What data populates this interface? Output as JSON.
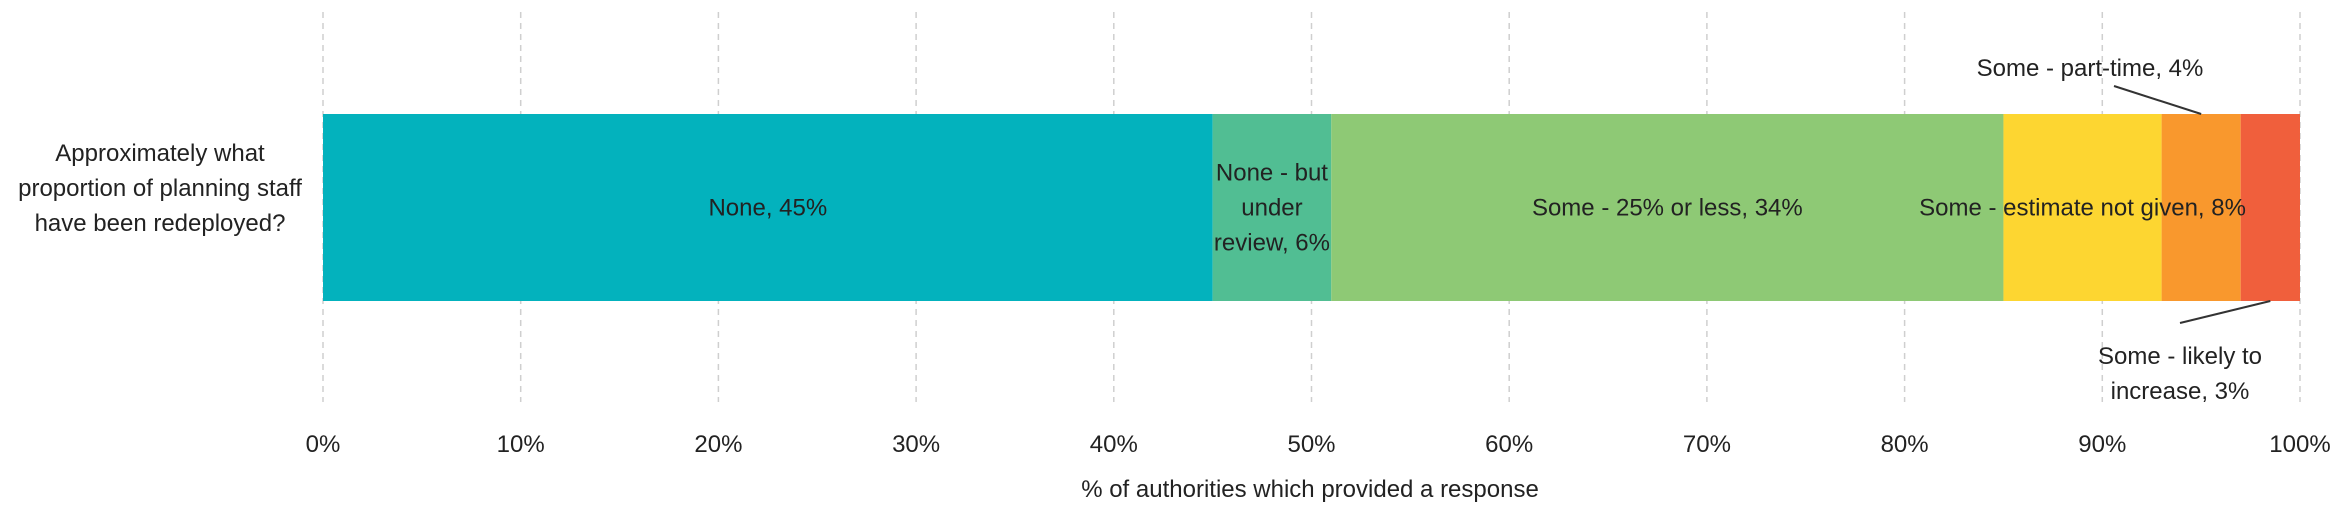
{
  "chart_data": {
    "type": "bar",
    "orientation": "horizontal",
    "stacked": true,
    "category": "Approximately what proportion of planning staff have been redeployed?",
    "xlabel": "% of authorities which provided a response",
    "xlim": [
      0,
      100
    ],
    "xticks": [
      "0%",
      "10%",
      "20%",
      "30%",
      "40%",
      "50%",
      "60%",
      "70%",
      "80%",
      "90%",
      "100%"
    ],
    "grid": "vertical dashed",
    "segments": [
      {
        "name": "None",
        "value": 45,
        "color": "#03B2BD",
        "label": "None, 45%"
      },
      {
        "name": "None - but under review",
        "value": 6,
        "color": "#51BE93",
        "label": "None - but under review, 6%"
      },
      {
        "name": "Some - 25% or less",
        "value": 34,
        "color": "#8EC975",
        "label": "Some - 25% or less, 34%"
      },
      {
        "name": "Some - estimate not given",
        "value": 8,
        "color": "#FDD631",
        "label": "Some - estimate not given, 8%"
      },
      {
        "name": "Some - part-time",
        "value": 4,
        "color": "#F9982D",
        "label": "Some - part-time, 4%"
      },
      {
        "name": "Some - likely to increase",
        "value": 3,
        "color": "#F05F3C",
        "label": "Some - likely to increase, 3%"
      }
    ]
  }
}
